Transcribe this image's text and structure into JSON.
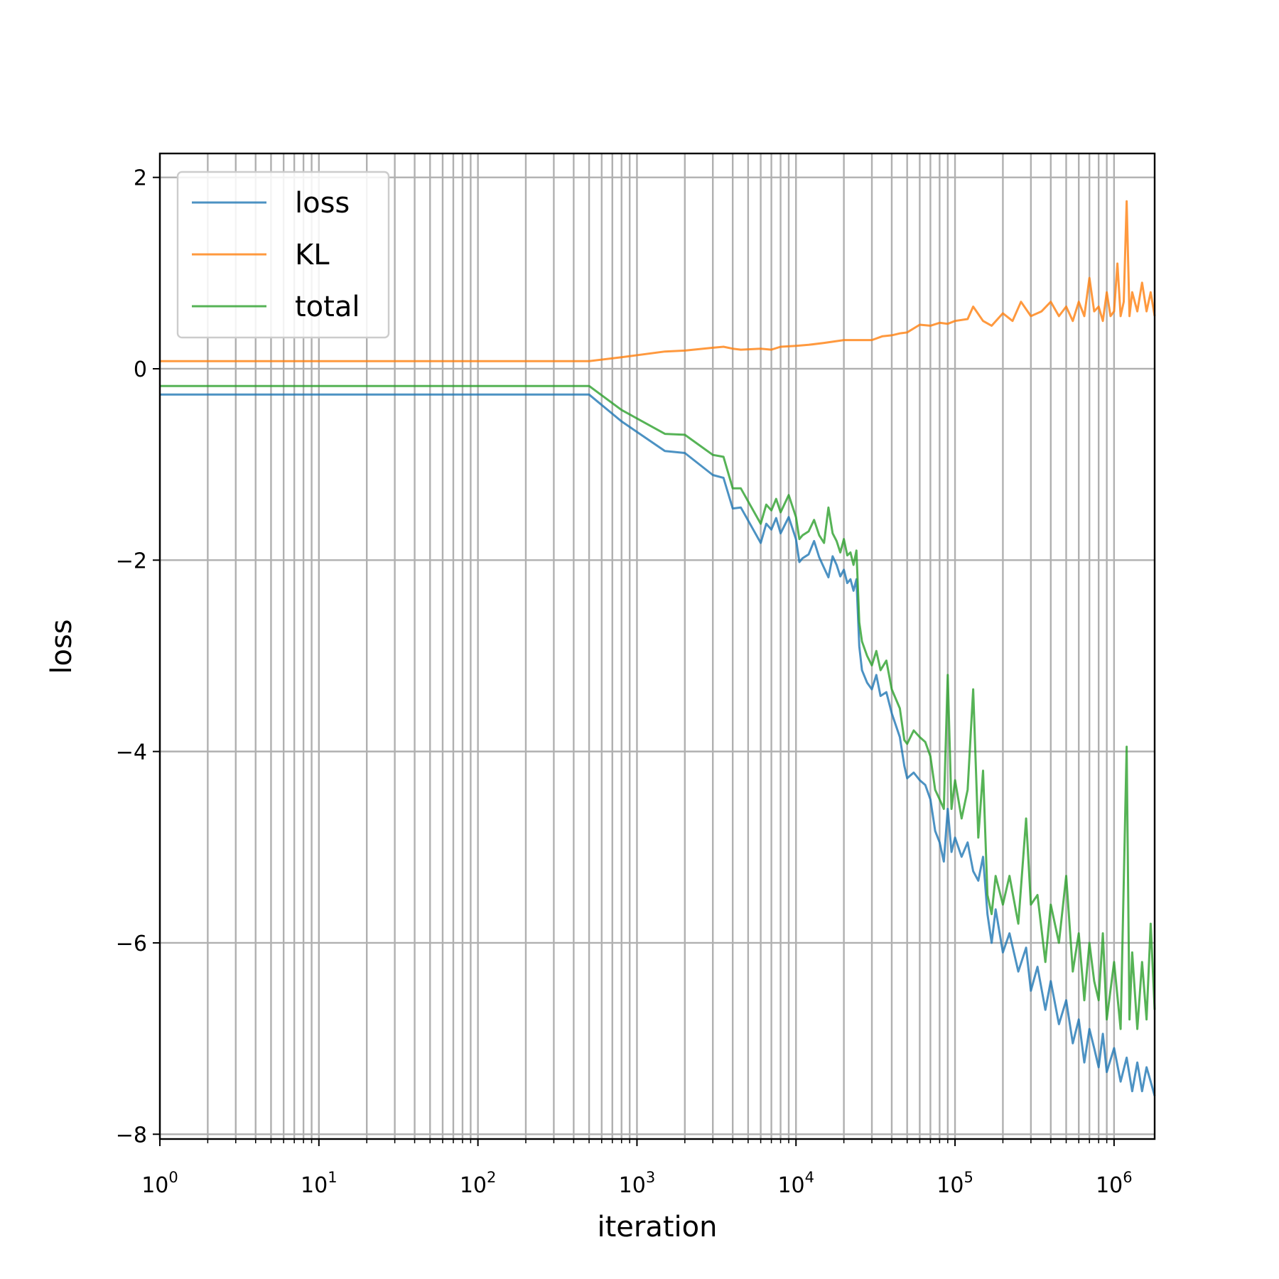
{
  "chart_data": {
    "type": "line",
    "xlabel": "iteration",
    "ylabel": "loss",
    "xscale": "log",
    "xlim": [
      1,
      1800000
    ],
    "ylim": [
      -8.05,
      2.25
    ],
    "grid": "both major and minor",
    "legend_position": "top-left",
    "xticks": [
      {
        "value": 1,
        "base": "10",
        "exp": "0"
      },
      {
        "value": 10,
        "base": "10",
        "exp": "1"
      },
      {
        "value": 100,
        "base": "10",
        "exp": "2"
      },
      {
        "value": 1000,
        "base": "10",
        "exp": "3"
      },
      {
        "value": 10000,
        "base": "10",
        "exp": "4"
      },
      {
        "value": 100000,
        "base": "10",
        "exp": "5"
      },
      {
        "value": 1000000,
        "base": "10",
        "exp": "6"
      }
    ],
    "yticks": [
      {
        "value": 2,
        "label": "2"
      },
      {
        "value": 0,
        "label": "0"
      },
      {
        "value": -2,
        "label": "−2"
      },
      {
        "value": -4,
        "label": "−4"
      },
      {
        "value": -6,
        "label": "−6"
      },
      {
        "value": -8,
        "label": "−8"
      }
    ],
    "series": [
      {
        "name": "loss",
        "color": "#1f77b4",
        "points": [
          [
            1,
            -0.27
          ],
          [
            500,
            -0.27
          ],
          [
            800,
            -0.55
          ],
          [
            1500,
            -0.86
          ],
          [
            2000,
            -0.88
          ],
          [
            3000,
            -1.11
          ],
          [
            3500,
            -1.14
          ],
          [
            4000,
            -1.46
          ],
          [
            4500,
            -1.45
          ],
          [
            6000,
            -1.82
          ],
          [
            6500,
            -1.62
          ],
          [
            7000,
            -1.68
          ],
          [
            7500,
            -1.56
          ],
          [
            8000,
            -1.72
          ],
          [
            9000,
            -1.55
          ],
          [
            10000,
            -1.78
          ],
          [
            10500,
            -2.02
          ],
          [
            11000,
            -1.98
          ],
          [
            12000,
            -1.94
          ],
          [
            13000,
            -1.8
          ],
          [
            14000,
            -1.97
          ],
          [
            15000,
            -2.08
          ],
          [
            16000,
            -2.18
          ],
          [
            17000,
            -1.96
          ],
          [
            18000,
            -2.05
          ],
          [
            19000,
            -2.17
          ],
          [
            20000,
            -2.1
          ],
          [
            21000,
            -2.24
          ],
          [
            22000,
            -2.2
          ],
          [
            23000,
            -2.32
          ],
          [
            24000,
            -2.2
          ],
          [
            25000,
            -2.9
          ],
          [
            26000,
            -3.15
          ],
          [
            28000,
            -3.28
          ],
          [
            30000,
            -3.35
          ],
          [
            32000,
            -3.2
          ],
          [
            34000,
            -3.42
          ],
          [
            37000,
            -3.38
          ],
          [
            40000,
            -3.6
          ],
          [
            45000,
            -3.85
          ],
          [
            48000,
            -4.15
          ],
          [
            50000,
            -4.28
          ],
          [
            55000,
            -4.22
          ],
          [
            60000,
            -4.3
          ],
          [
            65000,
            -4.35
          ],
          [
            70000,
            -4.5
          ],
          [
            75000,
            -4.83
          ],
          [
            80000,
            -4.95
          ],
          [
            85000,
            -5.15
          ],
          [
            90000,
            -4.6
          ],
          [
            95000,
            -5.05
          ],
          [
            100000,
            -4.9
          ],
          [
            110000,
            -5.1
          ],
          [
            120000,
            -4.95
          ],
          [
            130000,
            -5.25
          ],
          [
            140000,
            -5.35
          ],
          [
            150000,
            -5.1
          ],
          [
            160000,
            -5.7
          ],
          [
            170000,
            -6.0
          ],
          [
            180000,
            -5.65
          ],
          [
            200000,
            -6.1
          ],
          [
            220000,
            -5.9
          ],
          [
            250000,
            -6.3
          ],
          [
            280000,
            -6.05
          ],
          [
            300000,
            -6.5
          ],
          [
            330000,
            -6.25
          ],
          [
            370000,
            -6.7
          ],
          [
            400000,
            -6.4
          ],
          [
            450000,
            -6.85
          ],
          [
            500000,
            -6.6
          ],
          [
            550000,
            -7.05
          ],
          [
            600000,
            -6.8
          ],
          [
            650000,
            -7.25
          ],
          [
            700000,
            -6.9
          ],
          [
            750000,
            -7.1
          ],
          [
            800000,
            -7.3
          ],
          [
            850000,
            -6.95
          ],
          [
            900000,
            -7.35
          ],
          [
            1000000,
            -7.1
          ],
          [
            1100000,
            -7.45
          ],
          [
            1200000,
            -7.2
          ],
          [
            1300000,
            -7.55
          ],
          [
            1400000,
            -7.25
          ],
          [
            1500000,
            -7.55
          ],
          [
            1600000,
            -7.3
          ],
          [
            1700000,
            -7.45
          ],
          [
            1800000,
            -7.6
          ]
        ]
      },
      {
        "name": "KL",
        "color": "#ff7f0e",
        "points": [
          [
            1,
            0.08
          ],
          [
            500,
            0.08
          ],
          [
            800,
            0.12
          ],
          [
            1500,
            0.18
          ],
          [
            2000,
            0.19
          ],
          [
            3000,
            0.22
          ],
          [
            3500,
            0.23
          ],
          [
            4000,
            0.21
          ],
          [
            4500,
            0.2
          ],
          [
            6000,
            0.21
          ],
          [
            7000,
            0.2
          ],
          [
            8000,
            0.23
          ],
          [
            10000,
            0.24
          ],
          [
            12000,
            0.25
          ],
          [
            15000,
            0.27
          ],
          [
            20000,
            0.3
          ],
          [
            25000,
            0.3
          ],
          [
            30000,
            0.3
          ],
          [
            35000,
            0.34
          ],
          [
            40000,
            0.35
          ],
          [
            45000,
            0.37
          ],
          [
            50000,
            0.38
          ],
          [
            60000,
            0.46
          ],
          [
            70000,
            0.45
          ],
          [
            80000,
            0.48
          ],
          [
            90000,
            0.47
          ],
          [
            100000,
            0.5
          ],
          [
            120000,
            0.52
          ],
          [
            130000,
            0.65
          ],
          [
            150000,
            0.5
          ],
          [
            170000,
            0.45
          ],
          [
            200000,
            0.58
          ],
          [
            230000,
            0.5
          ],
          [
            260000,
            0.7
          ],
          [
            300000,
            0.55
          ],
          [
            350000,
            0.6
          ],
          [
            400000,
            0.7
          ],
          [
            450000,
            0.55
          ],
          [
            500000,
            0.65
          ],
          [
            550000,
            0.5
          ],
          [
            600000,
            0.7
          ],
          [
            650000,
            0.55
          ],
          [
            700000,
            0.95
          ],
          [
            750000,
            0.6
          ],
          [
            800000,
            0.65
          ],
          [
            850000,
            0.5
          ],
          [
            900000,
            0.8
          ],
          [
            950000,
            0.55
          ],
          [
            1000000,
            0.6
          ],
          [
            1050000,
            1.1
          ],
          [
            1100000,
            0.55
          ],
          [
            1150000,
            0.7
          ],
          [
            1200000,
            1.75
          ],
          [
            1250000,
            0.55
          ],
          [
            1300000,
            0.8
          ],
          [
            1400000,
            0.6
          ],
          [
            1500000,
            0.9
          ],
          [
            1600000,
            0.6
          ],
          [
            1700000,
            0.8
          ],
          [
            1800000,
            0.55
          ]
        ]
      },
      {
        "name": "total",
        "color": "#2ca02c",
        "points": [
          [
            1,
            -0.18
          ],
          [
            500,
            -0.18
          ],
          [
            800,
            -0.43
          ],
          [
            1500,
            -0.68
          ],
          [
            2000,
            -0.69
          ],
          [
            3000,
            -0.9
          ],
          [
            3500,
            -0.92
          ],
          [
            4000,
            -1.25
          ],
          [
            4500,
            -1.25
          ],
          [
            6000,
            -1.62
          ],
          [
            6500,
            -1.42
          ],
          [
            7000,
            -1.48
          ],
          [
            7500,
            -1.36
          ],
          [
            8000,
            -1.5
          ],
          [
            9000,
            -1.32
          ],
          [
            10000,
            -1.55
          ],
          [
            10500,
            -1.78
          ],
          [
            11000,
            -1.74
          ],
          [
            12000,
            -1.7
          ],
          [
            13000,
            -1.58
          ],
          [
            14000,
            -1.74
          ],
          [
            15000,
            -1.82
          ],
          [
            16000,
            -1.45
          ],
          [
            17000,
            -1.72
          ],
          [
            18000,
            -1.8
          ],
          [
            19000,
            -1.92
          ],
          [
            20000,
            -1.78
          ],
          [
            21000,
            -1.95
          ],
          [
            22000,
            -1.92
          ],
          [
            23000,
            -2.05
          ],
          [
            24000,
            -1.9
          ],
          [
            25000,
            -2.65
          ],
          [
            26000,
            -2.85
          ],
          [
            28000,
            -3.0
          ],
          [
            30000,
            -3.1
          ],
          [
            32000,
            -2.95
          ],
          [
            34000,
            -3.15
          ],
          [
            37000,
            -3.05
          ],
          [
            40000,
            -3.35
          ],
          [
            45000,
            -3.55
          ],
          [
            48000,
            -3.88
          ],
          [
            50000,
            -3.92
          ],
          [
            55000,
            -3.78
          ],
          [
            60000,
            -3.85
          ],
          [
            65000,
            -3.9
          ],
          [
            70000,
            -4.05
          ],
          [
            75000,
            -4.4
          ],
          [
            80000,
            -4.5
          ],
          [
            85000,
            -4.6
          ],
          [
            90000,
            -3.2
          ],
          [
            95000,
            -4.6
          ],
          [
            100000,
            -4.3
          ],
          [
            110000,
            -4.7
          ],
          [
            120000,
            -4.4
          ],
          [
            130000,
            -3.35
          ],
          [
            140000,
            -4.9
          ],
          [
            150000,
            -4.2
          ],
          [
            160000,
            -5.5
          ],
          [
            170000,
            -5.7
          ],
          [
            180000,
            -5.3
          ],
          [
            200000,
            -5.6
          ],
          [
            220000,
            -5.3
          ],
          [
            250000,
            -5.8
          ],
          [
            280000,
            -4.7
          ],
          [
            300000,
            -5.6
          ],
          [
            330000,
            -5.5
          ],
          [
            370000,
            -6.2
          ],
          [
            400000,
            -5.6
          ],
          [
            450000,
            -6.0
          ],
          [
            500000,
            -5.3
          ],
          [
            550000,
            -6.3
          ],
          [
            600000,
            -5.9
          ],
          [
            650000,
            -6.6
          ],
          [
            700000,
            -6.0
          ],
          [
            750000,
            -6.4
          ],
          [
            800000,
            -6.6
          ],
          [
            850000,
            -5.9
          ],
          [
            900000,
            -6.8
          ],
          [
            1000000,
            -6.2
          ],
          [
            1100000,
            -6.9
          ],
          [
            1200000,
            -3.95
          ],
          [
            1250000,
            -6.8
          ],
          [
            1300000,
            -6.1
          ],
          [
            1400000,
            -6.9
          ],
          [
            1500000,
            -6.2
          ],
          [
            1600000,
            -6.8
          ],
          [
            1700000,
            -5.8
          ],
          [
            1800000,
            -6.7
          ]
        ]
      }
    ]
  }
}
